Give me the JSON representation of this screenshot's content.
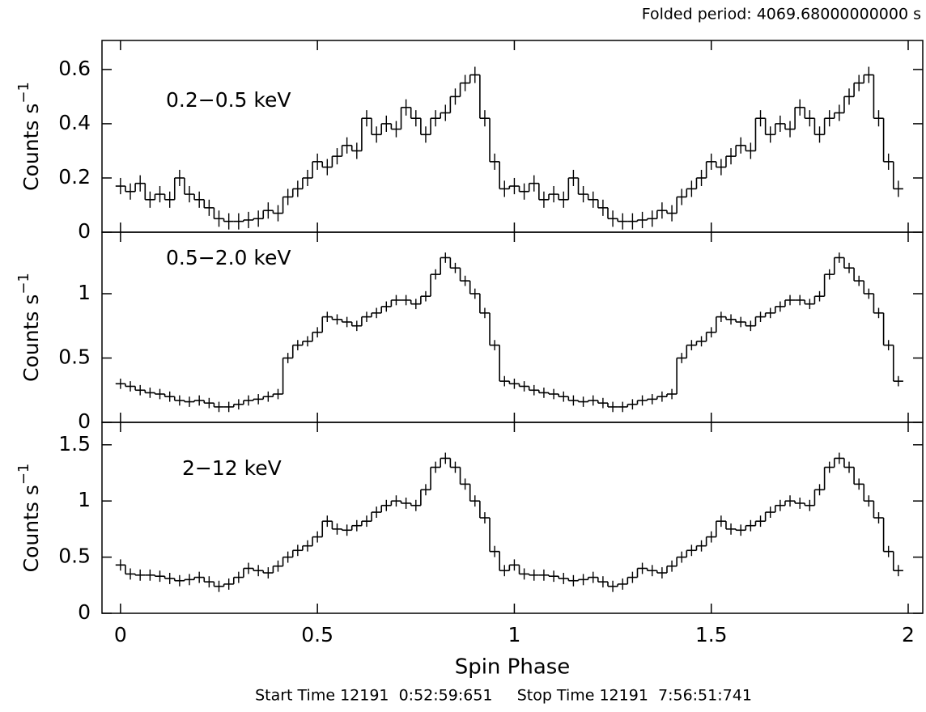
{
  "header": "Folded period: 4069.68000000000 s",
  "footer": "Start Time 12191  0:52:59:651     Stop Time 12191  7:56:51:741",
  "chart_data": [
    {
      "type": "line",
      "annotation": "0.2−0.5 keV",
      "ylabel": "Counts s",
      "ylabel_sup": "−1",
      "color": "#000000",
      "xtick_labels": false,
      "x": [
        0,
        0.025,
        0.05,
        0.075,
        0.1,
        0.125,
        0.15,
        0.175,
        0.2,
        0.225,
        0.25,
        0.275,
        0.3,
        0.325,
        0.35,
        0.375,
        0.4,
        0.425,
        0.45,
        0.475,
        0.5,
        0.525,
        0.55,
        0.575,
        0.6,
        0.625,
        0.65,
        0.675,
        0.7,
        0.725,
        0.75,
        0.775,
        0.8,
        0.825,
        0.85,
        0.875,
        0.9,
        0.925,
        0.95,
        0.975,
        1,
        1.025,
        1.05,
        1.075,
        1.1,
        1.125,
        1.15,
        1.175,
        1.2,
        1.225,
        1.25,
        1.275,
        1.3,
        1.325,
        1.35,
        1.375,
        1.4,
        1.425,
        1.45,
        1.475,
        1.5,
        1.525,
        1.55,
        1.575,
        1.6,
        1.625,
        1.65,
        1.675,
        1.7,
        1.725,
        1.75,
        1.775,
        1.8,
        1.825,
        1.85,
        1.875,
        1.9,
        1.925,
        1.95,
        1.975
      ],
      "values": [
        0.17,
        0.15,
        0.18,
        0.12,
        0.14,
        0.12,
        0.2,
        0.14,
        0.12,
        0.09,
        0.05,
        0.04,
        0.04,
        0.045,
        0.05,
        0.08,
        0.07,
        0.13,
        0.16,
        0.2,
        0.26,
        0.24,
        0.28,
        0.32,
        0.3,
        0.42,
        0.36,
        0.4,
        0.38,
        0.46,
        0.42,
        0.36,
        0.42,
        0.44,
        0.5,
        0.55,
        0.58,
        0.42,
        0.26,
        0.16,
        0.17,
        0.15,
        0.18,
        0.12,
        0.14,
        0.12,
        0.2,
        0.14,
        0.12,
        0.09,
        0.05,
        0.04,
        0.04,
        0.045,
        0.05,
        0.08,
        0.07,
        0.13,
        0.16,
        0.2,
        0.26,
        0.24,
        0.28,
        0.32,
        0.3,
        0.42,
        0.36,
        0.4,
        0.38,
        0.46,
        0.42,
        0.36,
        0.42,
        0.44,
        0.5,
        0.55,
        0.58,
        0.42,
        0.26,
        0.16
      ],
      "error": 0.03,
      "xlim": [
        -0.047,
        2.037
      ],
      "xticks": [
        0,
        0.5,
        1,
        1.5,
        2
      ],
      "ylim": [
        0,
        0.707
      ],
      "yticks": [
        0,
        0.2,
        0.4,
        0.6
      ]
    },
    {
      "type": "line",
      "annotation": "0.5−2.0 keV",
      "ylabel": "Counts s",
      "ylabel_sup": "−1",
      "color": "#000000",
      "xtick_labels": false,
      "x": [
        0,
        0.025,
        0.05,
        0.075,
        0.1,
        0.125,
        0.15,
        0.175,
        0.2,
        0.225,
        0.25,
        0.275,
        0.3,
        0.325,
        0.35,
        0.375,
        0.4,
        0.425,
        0.45,
        0.475,
        0.5,
        0.525,
        0.55,
        0.575,
        0.6,
        0.625,
        0.65,
        0.675,
        0.7,
        0.725,
        0.75,
        0.775,
        0.8,
        0.825,
        0.85,
        0.875,
        0.9,
        0.925,
        0.95,
        0.975,
        1,
        1.025,
        1.05,
        1.075,
        1.1,
        1.125,
        1.15,
        1.175,
        1.2,
        1.225,
        1.25,
        1.275,
        1.3,
        1.325,
        1.35,
        1.375,
        1.4,
        1.425,
        1.45,
        1.475,
        1.5,
        1.525,
        1.55,
        1.575,
        1.6,
        1.625,
        1.65,
        1.675,
        1.7,
        1.725,
        1.75,
        1.775,
        1.8,
        1.825,
        1.85,
        1.875,
        1.9,
        1.925,
        1.95,
        1.975
      ],
      "values": [
        0.3,
        0.28,
        0.25,
        0.23,
        0.22,
        0.2,
        0.17,
        0.16,
        0.17,
        0.15,
        0.12,
        0.12,
        0.14,
        0.17,
        0.18,
        0.2,
        0.22,
        0.5,
        0.6,
        0.63,
        0.7,
        0.82,
        0.8,
        0.78,
        0.75,
        0.82,
        0.85,
        0.9,
        0.95,
        0.95,
        0.92,
        0.98,
        1.15,
        1.28,
        1.2,
        1.1,
        1.0,
        0.85,
        0.6,
        0.32,
        0.3,
        0.28,
        0.25,
        0.23,
        0.22,
        0.2,
        0.17,
        0.16,
        0.17,
        0.15,
        0.12,
        0.12,
        0.14,
        0.17,
        0.18,
        0.2,
        0.22,
        0.5,
        0.6,
        0.63,
        0.7,
        0.82,
        0.8,
        0.78,
        0.75,
        0.82,
        0.85,
        0.9,
        0.95,
        0.95,
        0.92,
        0.98,
        1.15,
        1.28,
        1.2,
        1.1,
        1.0,
        0.85,
        0.6,
        0.32
      ],
      "error": 0.04,
      "xlim": [
        -0.047,
        2.037
      ],
      "xticks": [
        0,
        0.5,
        1,
        1.5,
        2
      ],
      "ylim": [
        0,
        1.478
      ],
      "yticks": [
        0,
        0.5,
        1
      ]
    },
    {
      "type": "line",
      "annotation": "2−12 keV",
      "ylabel": "Counts s",
      "ylabel_sup": "−1",
      "xlabel": "Spin Phase",
      "color": "#000000",
      "xtick_labels": true,
      "x": [
        0,
        0.025,
        0.05,
        0.075,
        0.1,
        0.125,
        0.15,
        0.175,
        0.2,
        0.225,
        0.25,
        0.275,
        0.3,
        0.325,
        0.35,
        0.375,
        0.4,
        0.425,
        0.45,
        0.475,
        0.5,
        0.525,
        0.55,
        0.575,
        0.6,
        0.625,
        0.65,
        0.675,
        0.7,
        0.725,
        0.75,
        0.775,
        0.8,
        0.825,
        0.85,
        0.875,
        0.9,
        0.925,
        0.95,
        0.975,
        1,
        1.025,
        1.05,
        1.075,
        1.1,
        1.125,
        1.15,
        1.175,
        1.2,
        1.225,
        1.25,
        1.275,
        1.3,
        1.325,
        1.35,
        1.375,
        1.4,
        1.425,
        1.45,
        1.475,
        1.5,
        1.525,
        1.55,
        1.575,
        1.6,
        1.625,
        1.65,
        1.675,
        1.7,
        1.725,
        1.75,
        1.775,
        1.8,
        1.825,
        1.85,
        1.875,
        1.9,
        1.925,
        1.95,
        1.975
      ],
      "values": [
        0.43,
        0.35,
        0.34,
        0.34,
        0.33,
        0.31,
        0.29,
        0.3,
        0.32,
        0.28,
        0.24,
        0.26,
        0.32,
        0.4,
        0.38,
        0.36,
        0.42,
        0.5,
        0.56,
        0.6,
        0.68,
        0.82,
        0.75,
        0.74,
        0.78,
        0.82,
        0.9,
        0.96,
        1.0,
        0.98,
        0.96,
        1.1,
        1.3,
        1.38,
        1.3,
        1.15,
        1.0,
        0.85,
        0.55,
        0.38,
        0.43,
        0.35,
        0.34,
        0.34,
        0.33,
        0.31,
        0.29,
        0.3,
        0.32,
        0.28,
        0.24,
        0.26,
        0.32,
        0.4,
        0.38,
        0.36,
        0.42,
        0.5,
        0.56,
        0.6,
        0.68,
        0.82,
        0.75,
        0.74,
        0.78,
        0.82,
        0.9,
        0.96,
        1.0,
        0.98,
        0.96,
        1.1,
        1.3,
        1.38,
        1.3,
        1.15,
        1.0,
        0.85,
        0.55,
        0.38
      ],
      "error": 0.05,
      "xlim": [
        -0.047,
        2.037
      ],
      "xticks": [
        0,
        0.5,
        1,
        1.5,
        2
      ],
      "ylim": [
        0,
        1.7
      ],
      "yticks": [
        0,
        0.5,
        1,
        1.5
      ]
    }
  ]
}
